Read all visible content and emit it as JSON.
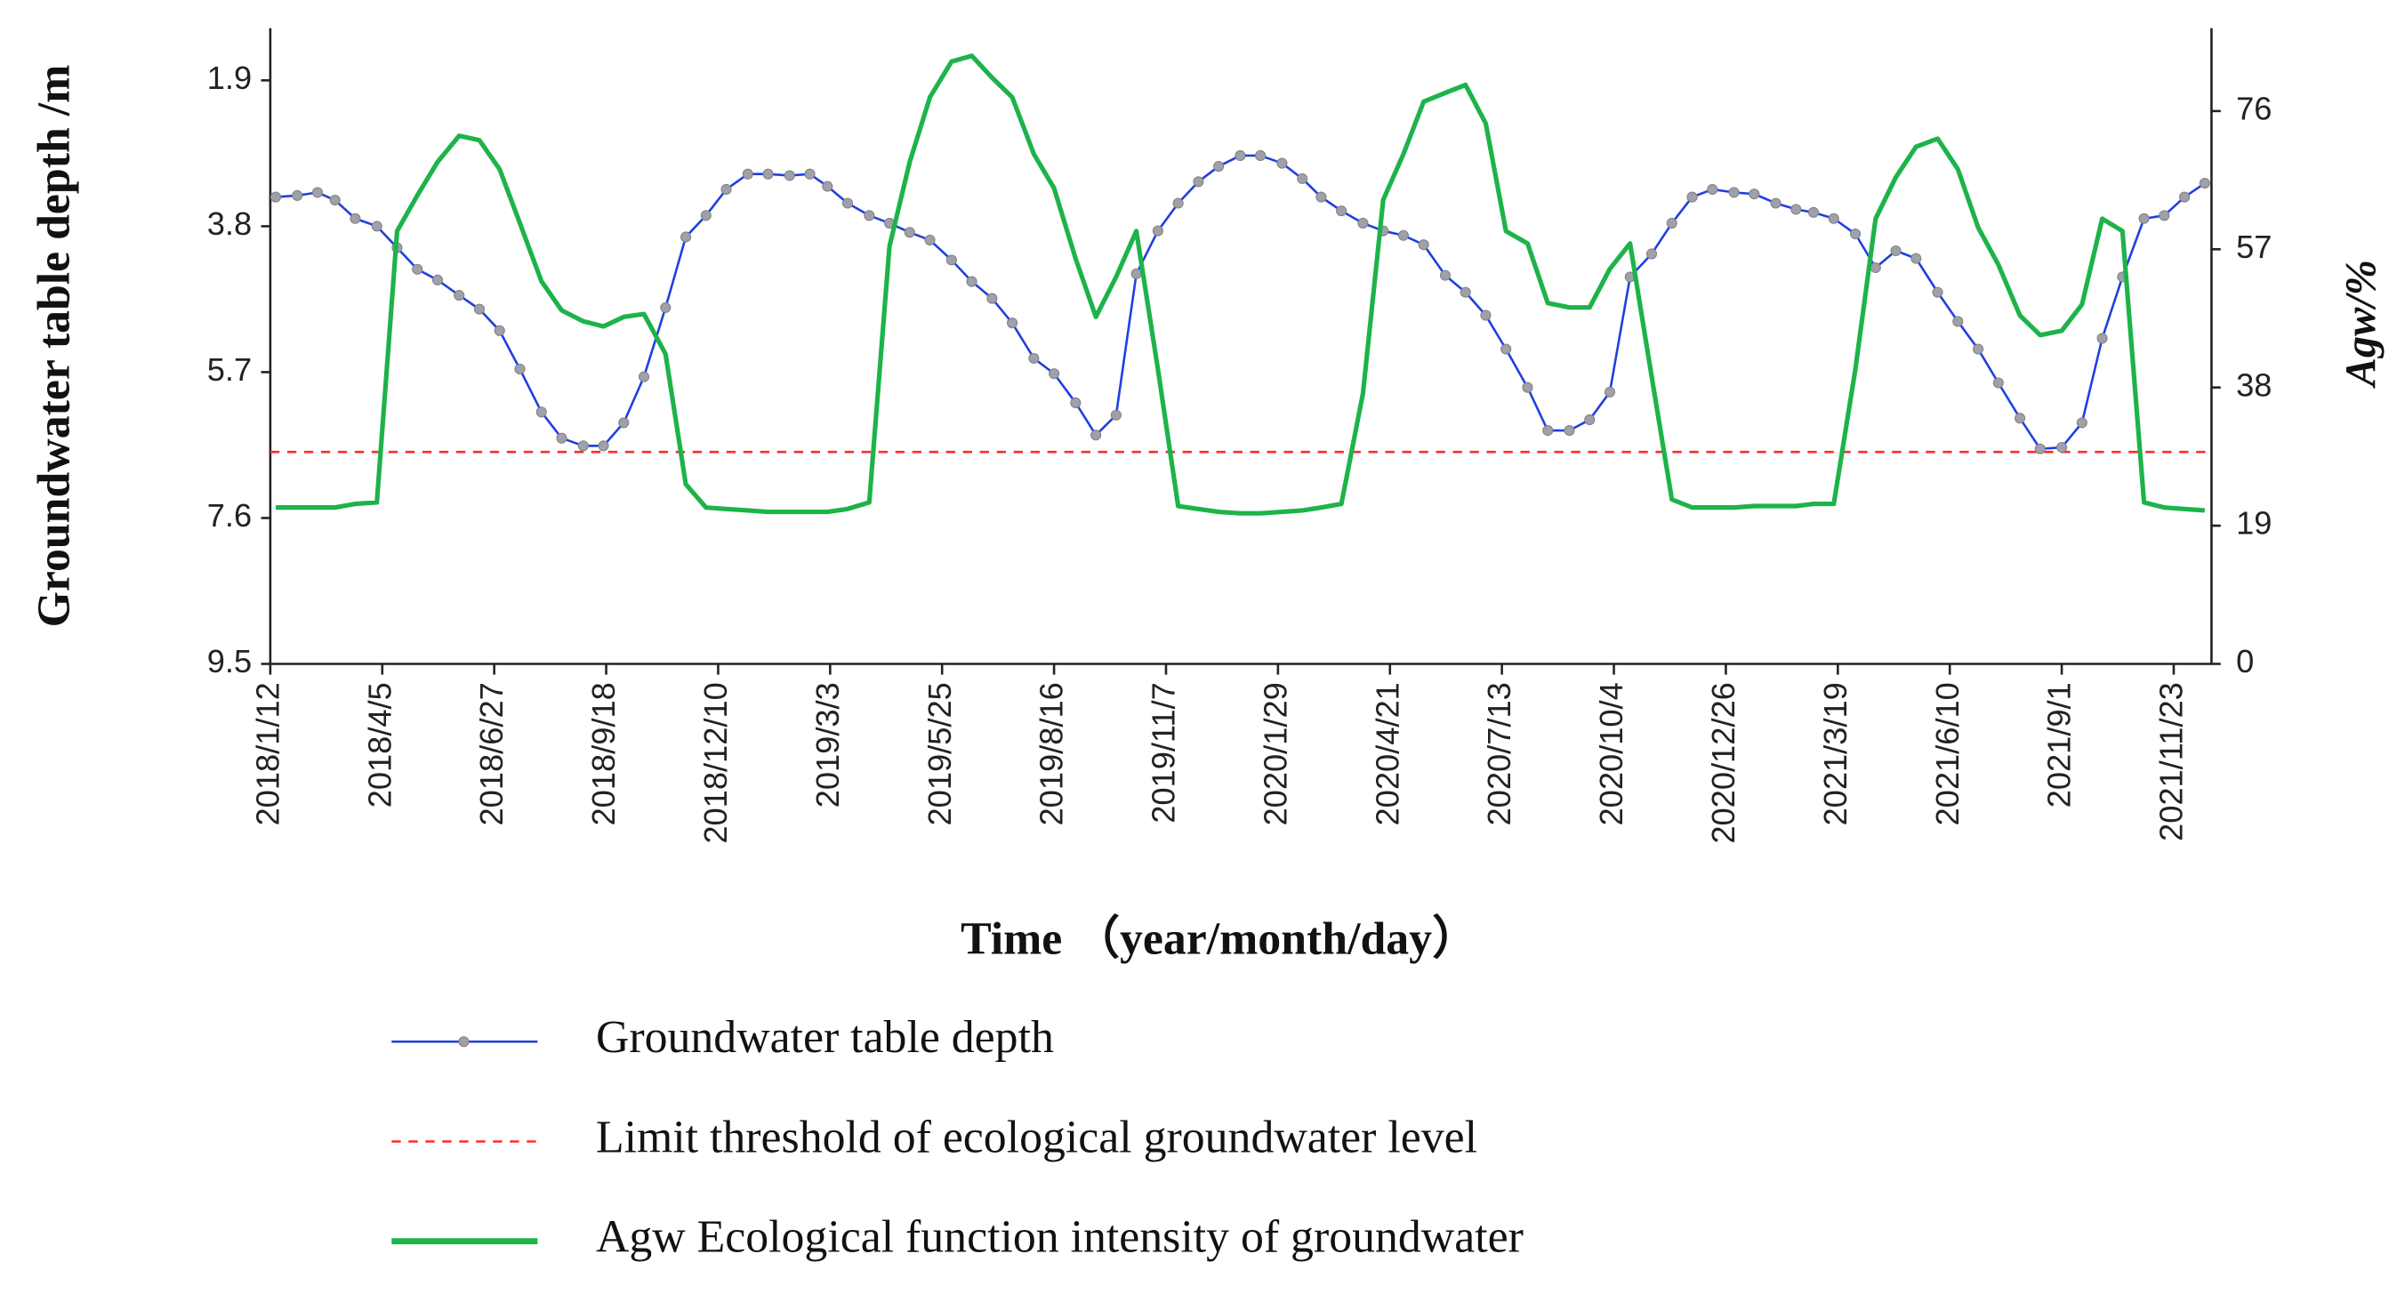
{
  "chart_data": {
    "type": "line",
    "x_label": "Time （year/month/day）",
    "y_label": "Groundwater table depth /m",
    "y2_label": "Agw/%",
    "xlim": [
      "2018/1/12",
      "2021/12/21"
    ],
    "xticks": [
      "2018/1/12",
      "2018/4/5",
      "2018/6/27",
      "2018/9/18",
      "2018/12/10",
      "2019/3/3",
      "2019/5/25",
      "2019/8/16",
      "2019/11/7",
      "2020/1/29",
      "2020/4/21",
      "2020/7/13",
      "2020/10/4",
      "2020/12/26",
      "2021/3/19",
      "2021/6/10",
      "2021/9/1",
      "2021/11/23"
    ],
    "ylim": [
      9.5,
      1.22
    ],
    "yticks": [
      1.9,
      3.8,
      5.7,
      7.6,
      9.5
    ],
    "y2lim": [
      0,
      87.4
    ],
    "y2ticks": [
      0,
      19,
      38,
      57,
      76
    ],
    "x": [
      "2018/1/16",
      "2018/2/1",
      "2018/2/16",
      "2018/3/1",
      "2018/3/16",
      "2018/4/1",
      "2018/4/16",
      "2018/5/1",
      "2018/5/16",
      "2018/6/1",
      "2018/6/16",
      "2018/7/1",
      "2018/7/16",
      "2018/8/1",
      "2018/8/16",
      "2018/9/1",
      "2018/9/16",
      "2018/10/1",
      "2018/10/16",
      "2018/11/1",
      "2018/11/16",
      "2018/12/1",
      "2018/12/16",
      "2019/1/1",
      "2019/1/16",
      "2019/2/1",
      "2019/2/16",
      "2019/3/1",
      "2019/3/16",
      "2019/4/1",
      "2019/4/16",
      "2019/5/1",
      "2019/5/16",
      "2019/6/1",
      "2019/6/16",
      "2019/7/1",
      "2019/7/16",
      "2019/8/1",
      "2019/8/16",
      "2019/9/1",
      "2019/9/16",
      "2019/10/1",
      "2019/10/16",
      "2019/11/1",
      "2019/11/16",
      "2019/12/1",
      "2019/12/16",
      "2020/1/1",
      "2020/1/16",
      "2020/2/1",
      "2020/2/16",
      "2020/3/1",
      "2020/3/16",
      "2020/4/1",
      "2020/4/16",
      "2020/5/1",
      "2020/5/16",
      "2020/6/1",
      "2020/6/16",
      "2020/7/1",
      "2020/7/16",
      "2020/8/1",
      "2020/8/16",
      "2020/9/1",
      "2020/9/16",
      "2020/10/1",
      "2020/10/16",
      "2020/11/1",
      "2020/11/16",
      "2020/12/1",
      "2020/12/16",
      "2021/1/1",
      "2021/1/16",
      "2021/2/1",
      "2021/2/16",
      "2021/3/1",
      "2021/3/16",
      "2021/4/1",
      "2021/4/16",
      "2021/5/1",
      "2021/5/16",
      "2021/6/1",
      "2021/6/16",
      "2021/7/1",
      "2021/7/16",
      "2021/8/1",
      "2021/8/16",
      "2021/9/1",
      "2021/9/16",
      "2021/10/1",
      "2021/10/16",
      "2021/11/1",
      "2021/11/16",
      "2021/12/1",
      "2021/12/16"
    ],
    "series": [
      {
        "name": "Groundwater table depth",
        "color": "#1f3fe0",
        "marker_color": "#a0a0a8",
        "axis": "y",
        "values": [
          3.42,
          3.4,
          3.36,
          3.46,
          3.7,
          3.8,
          4.08,
          4.36,
          4.5,
          4.7,
          4.88,
          5.16,
          5.66,
          6.22,
          6.56,
          6.66,
          6.66,
          6.36,
          5.76,
          4.86,
          3.94,
          3.66,
          3.32,
          3.12,
          3.12,
          3.14,
          3.12,
          3.28,
          3.5,
          3.66,
          3.76,
          3.88,
          3.98,
          4.24,
          4.52,
          4.74,
          5.06,
          5.52,
          5.72,
          6.1,
          6.52,
          6.26,
          4.42,
          3.86,
          3.5,
          3.22,
          3.02,
          2.88,
          2.88,
          2.98,
          3.18,
          3.42,
          3.6,
          3.76,
          3.86,
          3.92,
          4.04,
          4.44,
          4.66,
          4.96,
          5.4,
          5.9,
          6.46,
          6.46,
          6.32,
          5.96,
          4.46,
          4.16,
          3.76,
          3.42,
          3.32,
          3.36,
          3.38,
          3.5,
          3.58,
          3.62,
          3.7,
          3.9,
          4.34,
          4.12,
          4.22,
          4.66,
          5.04,
          5.4,
          5.84,
          6.3,
          6.7,
          6.68,
          6.36,
          5.26,
          4.46,
          3.7,
          3.66,
          3.42,
          3.24
        ]
      },
      {
        "name": "Agw Ecological function intensity of groundwater",
        "color": "#1db34a",
        "axis": "y2",
        "values": [
          21.5,
          21.5,
          21.5,
          21.5,
          22.0,
          22.2,
          59.5,
          64.4,
          69.0,
          72.6,
          72.0,
          68.0,
          60.6,
          52.6,
          48.6,
          47.1,
          46.4,
          47.7,
          48.1,
          42.6,
          24.7,
          21.5,
          21.3,
          21.1,
          20.9,
          20.9,
          20.9,
          20.9,
          21.3,
          22.2,
          57.4,
          69.0,
          77.9,
          82.8,
          83.6,
          80.6,
          77.9,
          70.1,
          65.4,
          55.7,
          47.7,
          53.2,
          59.5,
          40.5,
          21.7,
          21.3,
          20.9,
          20.7,
          20.7,
          20.9,
          21.1,
          21.5,
          22.0,
          37.2,
          63.8,
          70.1,
          77.3,
          78.5,
          79.6,
          74.3,
          59.5,
          57.8,
          49.6,
          49.0,
          49.0,
          54.3,
          57.8,
          39.5,
          22.6,
          21.5,
          21.5,
          21.5,
          21.7,
          21.7,
          21.7,
          22.0,
          22.0,
          40.5,
          61.2,
          66.9,
          71.1,
          72.2,
          68.0,
          60.0,
          54.9,
          47.9,
          45.2,
          45.8,
          49.4,
          61.2,
          59.5,
          22.2,
          21.5,
          21.3,
          21.1
        ]
      }
    ],
    "threshold": {
      "name": "Limit threshold of ecological groundwater level",
      "value": 6.74,
      "color": "#ff2a2a",
      "dashed": true
    }
  }
}
